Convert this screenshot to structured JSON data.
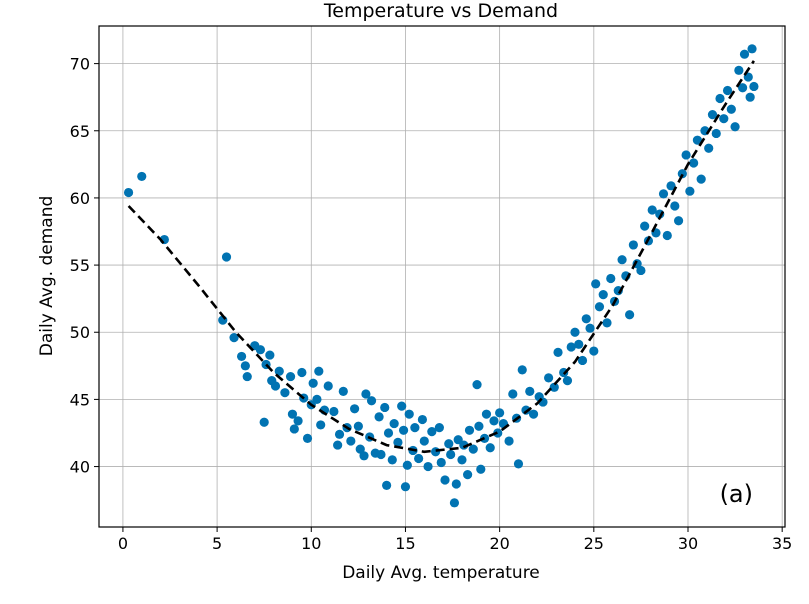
{
  "chart_data": {
    "type": "scatter",
    "title": "Temperature vs Demand",
    "xlabel": "Daily Avg. temperature",
    "ylabel": "Daily Avg. demand",
    "annotation": "(a)",
    "xlim": [
      -1.27,
      35.15
    ],
    "ylim": [
      35.5,
      72.8
    ],
    "xticks": [
      0,
      5,
      10,
      15,
      20,
      25,
      30,
      35
    ],
    "yticks": [
      40,
      45,
      50,
      55,
      60,
      65,
      70
    ],
    "grid": true,
    "point_color": "#0173b2",
    "fit_color": "#000000",
    "series": [
      {
        "name": "observations",
        "points": [
          [
            0.3,
            60.4
          ],
          [
            1.0,
            61.6
          ],
          [
            2.2,
            56.9
          ],
          [
            5.5,
            55.6
          ],
          [
            5.3,
            50.9
          ],
          [
            5.9,
            49.6
          ],
          [
            6.3,
            48.2
          ],
          [
            6.6,
            46.7
          ],
          [
            6.5,
            47.5
          ],
          [
            7.0,
            49.0
          ],
          [
            7.3,
            48.7
          ],
          [
            7.5,
            43.3
          ],
          [
            7.6,
            47.6
          ],
          [
            7.8,
            48.3
          ],
          [
            7.9,
            46.4
          ],
          [
            8.1,
            46.0
          ],
          [
            8.3,
            47.1
          ],
          [
            8.6,
            45.5
          ],
          [
            8.9,
            46.7
          ],
          [
            9.0,
            43.9
          ],
          [
            9.1,
            42.8
          ],
          [
            9.3,
            43.4
          ],
          [
            9.5,
            47.0
          ],
          [
            9.6,
            45.1
          ],
          [
            9.8,
            42.1
          ],
          [
            10.0,
            44.6
          ],
          [
            10.1,
            46.2
          ],
          [
            10.3,
            45.0
          ],
          [
            10.4,
            47.1
          ],
          [
            10.5,
            43.1
          ],
          [
            10.7,
            44.2
          ],
          [
            10.9,
            46.0
          ],
          [
            11.2,
            44.1
          ],
          [
            11.4,
            41.6
          ],
          [
            11.5,
            42.4
          ],
          [
            11.7,
            45.6
          ],
          [
            11.9,
            42.9
          ],
          [
            12.1,
            41.9
          ],
          [
            12.3,
            44.3
          ],
          [
            12.5,
            43.0
          ],
          [
            12.6,
            41.3
          ],
          [
            12.8,
            40.8
          ],
          [
            12.9,
            45.4
          ],
          [
            13.1,
            42.2
          ],
          [
            13.2,
            44.9
          ],
          [
            13.4,
            41.0
          ],
          [
            13.6,
            43.7
          ],
          [
            13.7,
            40.9
          ],
          [
            13.9,
            44.4
          ],
          [
            14.0,
            38.6
          ],
          [
            14.1,
            42.5
          ],
          [
            14.3,
            40.5
          ],
          [
            14.4,
            43.2
          ],
          [
            14.6,
            41.8
          ],
          [
            14.8,
            44.5
          ],
          [
            14.9,
            42.7
          ],
          [
            15.0,
            38.5
          ],
          [
            15.1,
            40.1
          ],
          [
            15.2,
            43.9
          ],
          [
            15.4,
            41.2
          ],
          [
            15.5,
            42.9
          ],
          [
            15.7,
            40.6
          ],
          [
            15.9,
            43.5
          ],
          [
            16.0,
            41.9
          ],
          [
            16.2,
            40.0
          ],
          [
            16.4,
            42.6
          ],
          [
            16.6,
            41.1
          ],
          [
            16.8,
            42.9
          ],
          [
            16.9,
            40.3
          ],
          [
            17.1,
            39.0
          ],
          [
            17.3,
            41.7
          ],
          [
            17.4,
            40.9
          ],
          [
            17.6,
            37.3
          ],
          [
            17.7,
            38.7
          ],
          [
            17.8,
            42.0
          ],
          [
            18.0,
            40.5
          ],
          [
            18.1,
            41.6
          ],
          [
            18.3,
            39.4
          ],
          [
            18.4,
            42.7
          ],
          [
            18.6,
            41.3
          ],
          [
            18.8,
            46.1
          ],
          [
            18.9,
            43.0
          ],
          [
            19.0,
            39.8
          ],
          [
            19.2,
            42.1
          ],
          [
            19.3,
            43.9
          ],
          [
            19.5,
            41.4
          ],
          [
            19.7,
            43.4
          ],
          [
            19.9,
            42.5
          ],
          [
            20.0,
            44.0
          ],
          [
            20.2,
            43.2
          ],
          [
            20.5,
            41.9
          ],
          [
            20.7,
            45.4
          ],
          [
            20.9,
            43.6
          ],
          [
            21.0,
            40.2
          ],
          [
            21.2,
            47.2
          ],
          [
            21.4,
            44.2
          ],
          [
            21.6,
            45.6
          ],
          [
            21.8,
            43.9
          ],
          [
            22.1,
            45.2
          ],
          [
            22.3,
            44.8
          ],
          [
            22.6,
            46.6
          ],
          [
            22.9,
            45.9
          ],
          [
            23.1,
            48.5
          ],
          [
            23.4,
            47.0
          ],
          [
            23.6,
            46.4
          ],
          [
            23.8,
            48.9
          ],
          [
            24.0,
            50.0
          ],
          [
            24.2,
            49.1
          ],
          [
            24.4,
            47.9
          ],
          [
            24.6,
            51.0
          ],
          [
            24.8,
            50.3
          ],
          [
            25.0,
            48.6
          ],
          [
            25.1,
            53.6
          ],
          [
            25.3,
            51.9
          ],
          [
            25.5,
            52.8
          ],
          [
            25.7,
            50.7
          ],
          [
            25.9,
            54.0
          ],
          [
            26.1,
            52.3
          ],
          [
            26.3,
            53.1
          ],
          [
            26.5,
            55.4
          ],
          [
            26.7,
            54.2
          ],
          [
            26.9,
            51.3
          ],
          [
            27.1,
            56.5
          ],
          [
            27.3,
            55.1
          ],
          [
            27.5,
            54.6
          ],
          [
            27.7,
            57.9
          ],
          [
            27.9,
            56.8
          ],
          [
            28.1,
            59.1
          ],
          [
            28.3,
            57.4
          ],
          [
            28.5,
            58.8
          ],
          [
            28.7,
            60.3
          ],
          [
            28.9,
            57.2
          ],
          [
            29.1,
            60.9
          ],
          [
            29.3,
            59.4
          ],
          [
            29.5,
            58.3
          ],
          [
            29.7,
            61.8
          ],
          [
            29.9,
            63.2
          ],
          [
            30.1,
            60.5
          ],
          [
            30.3,
            62.6
          ],
          [
            30.5,
            64.3
          ],
          [
            30.7,
            61.4
          ],
          [
            30.9,
            65.0
          ],
          [
            31.1,
            63.7
          ],
          [
            31.3,
            66.2
          ],
          [
            31.5,
            64.8
          ],
          [
            31.7,
            67.4
          ],
          [
            31.9,
            65.9
          ],
          [
            32.1,
            68.0
          ],
          [
            32.3,
            66.6
          ],
          [
            32.5,
            65.3
          ],
          [
            32.7,
            69.5
          ],
          [
            32.9,
            68.2
          ],
          [
            33.0,
            70.7
          ],
          [
            33.2,
            69.0
          ],
          [
            33.4,
            71.1
          ],
          [
            33.5,
            68.3
          ],
          [
            33.3,
            67.5
          ]
        ]
      }
    ],
    "fit": {
      "name": "fitted curve",
      "style": "dashed",
      "points": [
        [
          0.3,
          59.4
        ],
        [
          2,
          56.9
        ],
        [
          4,
          53.5
        ],
        [
          6,
          50.0
        ],
        [
          8,
          47.0
        ],
        [
          10,
          44.6
        ],
        [
          12,
          42.8
        ],
        [
          14,
          41.6
        ],
        [
          16,
          41.1
        ],
        [
          18,
          41.4
        ],
        [
          20,
          42.6
        ],
        [
          22,
          44.7
        ],
        [
          24,
          47.8
        ],
        [
          26,
          52.0
        ],
        [
          28,
          57.2
        ],
        [
          30,
          62.5
        ],
        [
          32,
          67.0
        ],
        [
          33.5,
          70.2
        ]
      ]
    }
  }
}
